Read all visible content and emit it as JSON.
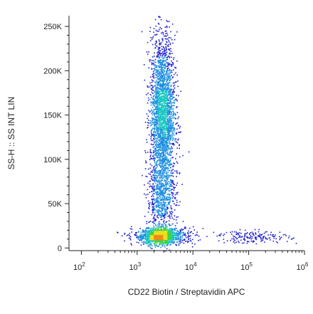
{
  "chart_data": {
    "type": "scatter",
    "plot_style": "flow cytometry density dot plot",
    "xlabel": "CD22 Biotin / Streptavidin APC",
    "ylabel": "SS-H :: SS INT LIN",
    "x_scale": "log",
    "y_scale": "linear",
    "xlim": [
      60,
      1000000
    ],
    "ylim": [
      -3000,
      262144
    ],
    "x_ticks": [
      {
        "value": 100,
        "base": "10",
        "exp": "2"
      },
      {
        "value": 1000,
        "base": "10",
        "exp": "3"
      },
      {
        "value": 10000,
        "base": "10",
        "exp": "4"
      },
      {
        "value": 100000,
        "base": "10",
        "exp": "5"
      },
      {
        "value": 1000000,
        "base": "10",
        "exp": "6"
      }
    ],
    "y_ticks": [
      {
        "value": 0,
        "label": "0"
      },
      {
        "value": 50000,
        "label": "50K"
      },
      {
        "value": 100000,
        "label": "100K"
      },
      {
        "value": 150000,
        "label": "150K"
      },
      {
        "value": 200000,
        "label": "200K"
      },
      {
        "value": 250000,
        "label": "250K"
      }
    ],
    "density_colors": [
      "#1f1fd0",
      "#1e8fe0",
      "#18c8c0",
      "#3fd24a",
      "#e8e020",
      "#f08a18",
      "#e81a10"
    ],
    "populations": [
      {
        "x_center": 2400,
        "x_log_sd": 0.14,
        "y_center": 14000,
        "y_sd": 4000,
        "n": 1100
      },
      {
        "x_center": 2800,
        "x_log_sd": 0.11,
        "y_center": 150000,
        "y_sd": 45000,
        "n": 2600
      },
      {
        "x_center": 2700,
        "x_log_sd": 0.13,
        "y_center": 55000,
        "y_sd": 22000,
        "n": 650
      },
      {
        "x_center": 3000,
        "x_log_sd": 0.28,
        "y_center": 14000,
        "y_sd": 5000,
        "n": 550
      },
      {
        "x_center": 120000,
        "x_log_sd": 0.32,
        "y_center": 13000,
        "y_sd": 3500,
        "n": 170
      }
    ]
  }
}
